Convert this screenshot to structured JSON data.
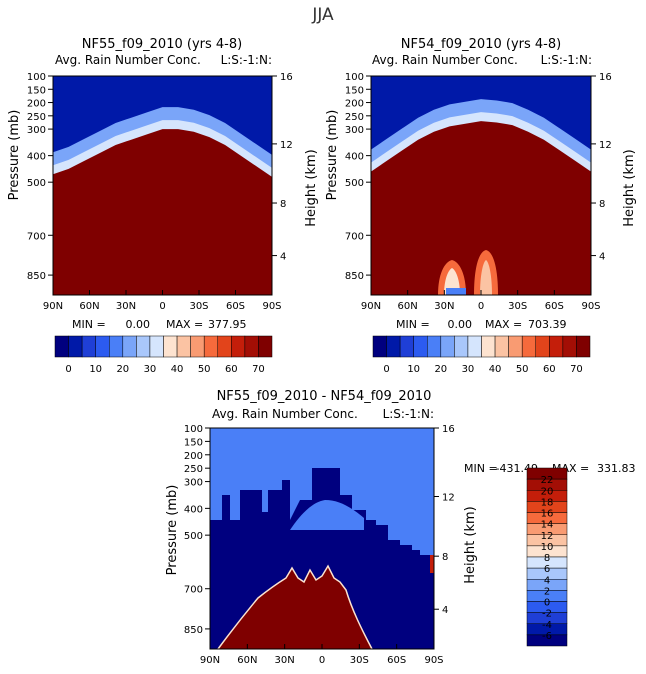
{
  "page_title": "JJA",
  "colors": {
    "blue_scale": [
      "#00007f",
      "#0019a8",
      "#1f3fd6",
      "#2c5bf0",
      "#4a7ff7",
      "#7aa5f9",
      "#a9c7fb",
      "#d5e5fd"
    ],
    "red_scale": [
      "#fde3d0",
      "#fbc3a3",
      "#f99b72",
      "#f66a3c",
      "#e2441b",
      "#c41e0a",
      "#a30e05",
      "#7f0000"
    ],
    "diff_fill": "#4a7ff7"
  },
  "chart_data": [
    {
      "id": "top-left",
      "type": "heatmap",
      "title": "NF55_f09_2010 (yrs 4-8)",
      "subtitle": "Avg. Rain Number Conc.",
      "level_label": "L:S:-1:N:",
      "xlabel": "",
      "ylabel": "Pressure (mb)",
      "y2label": "Height (km)",
      "x_ticks": [
        "90N",
        "60N",
        "30N",
        "0",
        "30S",
        "60S",
        "90S"
      ],
      "y_ticks": [
        "100",
        "150",
        "200",
        "250",
        "300",
        "400",
        "500",
        "700",
        "850"
      ],
      "y2_ticks": [
        "16",
        "12",
        "8",
        "4"
      ],
      "min_label": "MIN =",
      "min_value": "0.00",
      "max_label": "MAX =",
      "max_value": "377.95",
      "colorbar_ticks": [
        "0",
        "10",
        "20",
        "30",
        "40",
        "50",
        "60",
        "70"
      ],
      "boundary_pressure": [
        470,
        450,
        420,
        390,
        360,
        340,
        320,
        300,
        300,
        310,
        330,
        360,
        400,
        440,
        480
      ]
    },
    {
      "id": "top-right",
      "type": "heatmap",
      "title": "NF54_f09_2010 (yrs 4-8)",
      "subtitle": "Avg. Rain Number Conc.",
      "level_label": "L:S:-1:N:",
      "xlabel": "",
      "ylabel": "Pressure (mb)",
      "y2label": "Height (km)",
      "x_ticks": [
        "90N",
        "60N",
        "30N",
        "0",
        "30S",
        "60S",
        "90S"
      ],
      "y_ticks": [
        "100",
        "150",
        "200",
        "250",
        "300",
        "400",
        "500",
        "700",
        "850"
      ],
      "y2_ticks": [
        "16",
        "12",
        "8",
        "4"
      ],
      "min_label": "MIN =",
      "min_value": "0.00",
      "max_label": "MAX =",
      "max_value": "703.39",
      "colorbar_ticks": [
        "0",
        "10",
        "20",
        "30",
        "40",
        "50",
        "60",
        "70"
      ],
      "boundary_pressure": [
        460,
        420,
        380,
        340,
        310,
        290,
        280,
        270,
        275,
        285,
        310,
        340,
        380,
        420,
        460
      ]
    },
    {
      "id": "bottom",
      "type": "heatmap",
      "title": "NF55_f09_2010 - NF54_f09_2010",
      "subtitle": "Avg. Rain Number Conc.",
      "level_label": "L:S:-1:N:",
      "xlabel": "",
      "ylabel": "Pressure (mb)",
      "y2label": "Height (km)",
      "x_ticks": [
        "90N",
        "60N",
        "30N",
        "0",
        "30S",
        "60S",
        "90S"
      ],
      "y_ticks": [
        "100",
        "150",
        "200",
        "250",
        "300",
        "400",
        "500",
        "700",
        "850"
      ],
      "y2_ticks": [
        "16",
        "12",
        "8",
        "4"
      ],
      "min_label": "MIN =",
      "min_value": "-431.49",
      "max_label": "MAX =",
      "max_value": "331.83",
      "colorbar_ticks": [
        "22",
        "20",
        "18",
        "16",
        "14",
        "12",
        "10",
        "8",
        "6",
        "4",
        "2",
        "0",
        "-2",
        "-4",
        "-6"
      ]
    }
  ]
}
